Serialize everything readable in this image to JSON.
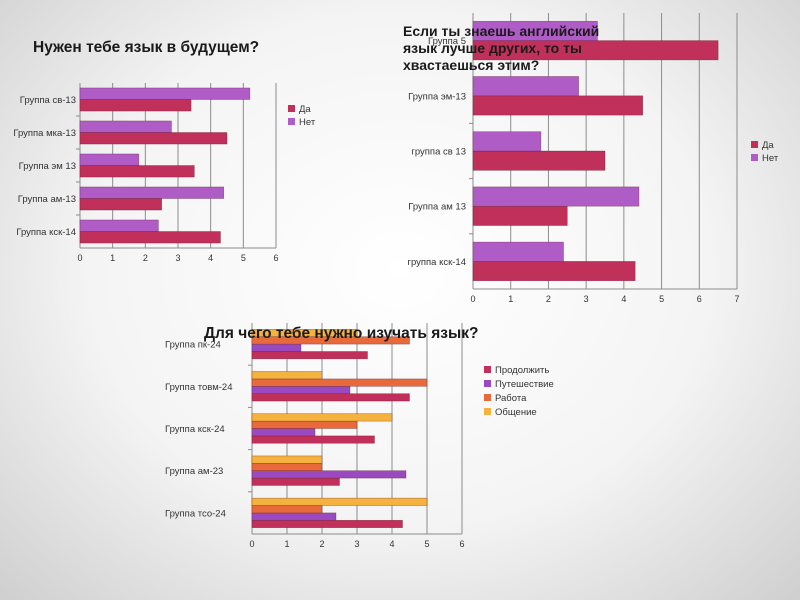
{
  "chart_data": [
    {
      "type": "bar",
      "orientation": "horizontal",
      "title": "Нужен тебе язык в будущем?",
      "categories": [
        "Группа св-13",
        "Группа мка-13",
        "Группа эм 13",
        "Группа ам-13",
        "Группа кск-14"
      ],
      "series": [
        {
          "name": "Да",
          "color": "#c0305a",
          "values": [
            3.4,
            4.5,
            3.5,
            2.5,
            4.3
          ]
        },
        {
          "name": "Нет",
          "color": "#b05cc6",
          "values": [
            5.2,
            2.8,
            1.8,
            4.4,
            2.4
          ]
        }
      ],
      "xlim": [
        0,
        6
      ],
      "xticks": [
        "0",
        "1",
        "2",
        "3",
        "4",
        "5",
        "6"
      ],
      "grid": true,
      "legend": "right"
    },
    {
      "type": "bar",
      "orientation": "horizontal",
      "title": "Если ты знаешь английский язык лучше других, то ты хвастаешься этим?",
      "categories": [
        "Группа 5",
        "Группа эм-13",
        "группа св 13",
        "Группа ам 13",
        "группа кск-14"
      ],
      "series": [
        {
          "name": "Да",
          "color": "#c0305a",
          "values": [
            6.5,
            4.5,
            3.5,
            2.5,
            4.3
          ]
        },
        {
          "name": "Нет",
          "color": "#b05cc6",
          "values": [
            3.3,
            2.8,
            1.8,
            4.4,
            2.4
          ]
        }
      ],
      "xlim": [
        0,
        7
      ],
      "xticks": [
        "0",
        "1",
        "2",
        "3",
        "4",
        "5",
        "6",
        "7"
      ],
      "grid": true,
      "legend": "right"
    },
    {
      "type": "bar",
      "orientation": "horizontal",
      "title": "Для чего тебе нужно изучать язык?",
      "categories": [
        "Группа пк-24",
        "Группа товм-24",
        "Группа кск-24",
        "Группа ам-23",
        "Группа тсо-24"
      ],
      "series": [
        {
          "name": "Продолжить",
          "color": "#c0305a",
          "values": [
            3.3,
            4.5,
            3.5,
            2.5,
            4.3
          ]
        },
        {
          "name": "Путешествие",
          "color": "#9b49c0",
          "values": [
            1.4,
            2.8,
            1.8,
            4.4,
            2.4
          ]
        },
        {
          "name": "Работа",
          "color": "#e86a3a",
          "values": [
            4.5,
            5.0,
            3.0,
            2.0,
            2.0
          ]
        },
        {
          "name": "Общение",
          "color": "#f5b23e",
          "values": [
            3.0,
            2.0,
            4.0,
            2.0,
            5.0
          ]
        }
      ],
      "xlim": [
        0,
        6
      ],
      "xticks": [
        "0",
        "1",
        "2",
        "3",
        "4",
        "5",
        "6"
      ],
      "grid": true,
      "legend": "right"
    }
  ]
}
